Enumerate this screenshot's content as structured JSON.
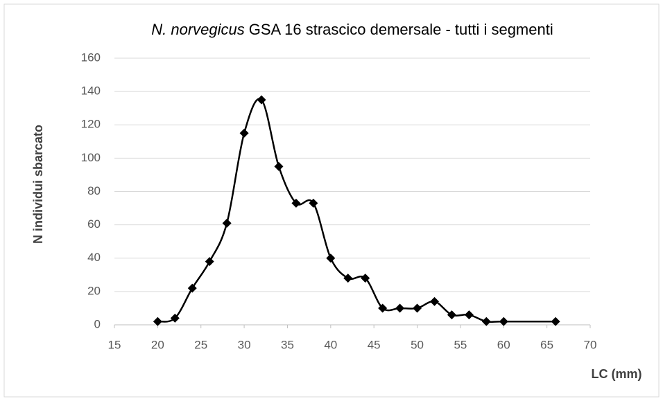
{
  "chart_data": {
    "type": "scatter",
    "title": [
      "N. norvegicus",
      "GSA 16 strascico demersale - tutti i segmenti"
    ],
    "x_label": "LC (mm)",
    "y_label": "N individui sbarcato",
    "series": [
      {
        "name": "LC",
        "color": "#000000",
        "x": [
          20,
          22,
          24,
          26,
          28,
          30,
          32,
          34,
          36,
          38,
          40,
          42,
          44,
          46,
          48,
          50,
          52,
          54,
          56,
          58,
          60,
          66
        ],
        "values": [
          2,
          4,
          22,
          38,
          61,
          115,
          135,
          95,
          73,
          73,
          40,
          28,
          28,
          10,
          10,
          10,
          14,
          6,
          6,
          2,
          2,
          2
        ]
      }
    ],
    "xlim": [
      15,
      70
    ],
    "xticks": [
      15,
      20,
      25,
      30,
      35,
      40,
      45,
      50,
      55,
      60,
      65,
      70
    ],
    "ylim": [
      0,
      160
    ],
    "yticks": [
      0,
      20,
      40,
      60,
      80,
      100,
      120,
      140,
      160
    ],
    "grid": true,
    "smooth": true
  }
}
